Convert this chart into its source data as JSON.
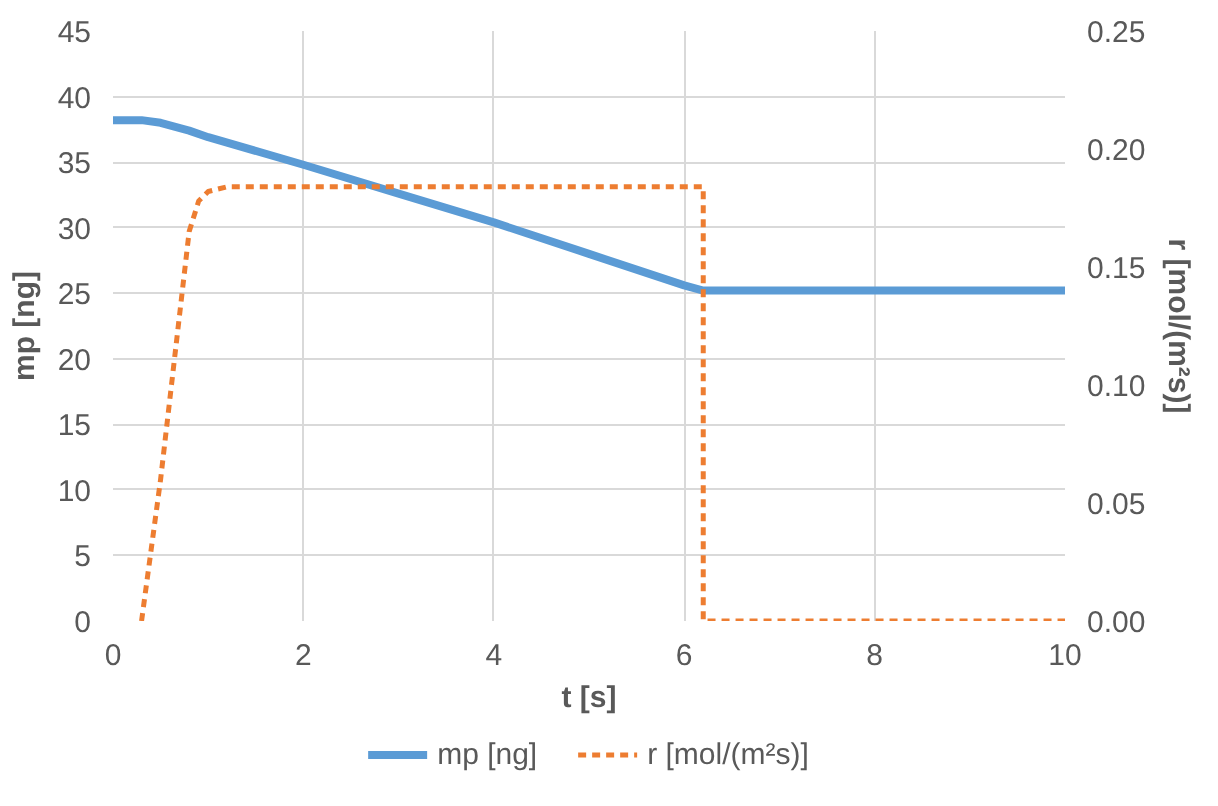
{
  "chart_data": {
    "type": "line",
    "xlabel": "t [s]",
    "ylabel": "mp [ng]",
    "y2label": "r [mol/(m²s)]",
    "xlim": [
      0,
      10
    ],
    "xticks": [
      0,
      2,
      4,
      6,
      8,
      10
    ],
    "ylim": [
      0,
      45
    ],
    "yticks": [
      0,
      5,
      10,
      15,
      20,
      25,
      30,
      35,
      40,
      45
    ],
    "y2lim": [
      0,
      0.25
    ],
    "y2ticks": [
      {
        "value": 0,
        "label": "0.00"
      },
      {
        "value": 0.05,
        "label": "0.05"
      },
      {
        "value": 0.1,
        "label": "0.10"
      },
      {
        "value": 0.15,
        "label": "0.15"
      },
      {
        "value": 0.2,
        "label": "0.20"
      },
      {
        "value": 0.25,
        "label": "0.25"
      }
    ],
    "grid": true,
    "legend": "bottom",
    "marker": "none",
    "series": [
      {
        "name": "mp [ng]",
        "color": "#5b9bd5",
        "line_style": "solid",
        "x": [
          0,
          0.3,
          0.5,
          0.8,
          1,
          2,
          3,
          4,
          5,
          6,
          6.2,
          10
        ],
        "values": [
          38.2,
          38.2,
          38.0,
          37.4,
          36.9,
          34.8,
          32.6,
          30.4,
          28.0,
          25.6,
          25.2,
          25.2
        ]
      },
      {
        "name": "r [mol/(m²s)]",
        "color": "#ed7d31",
        "line_style": "dashed",
        "axis": "y2",
        "x": [
          0.3,
          0.5,
          0.7,
          0.8,
          0.9,
          1.0,
          1.2,
          6.2,
          6.2,
          10
        ],
        "values": [
          0,
          0.06,
          0.13,
          0.165,
          0.178,
          0.182,
          0.184,
          0.184,
          0,
          0
        ]
      }
    ]
  }
}
